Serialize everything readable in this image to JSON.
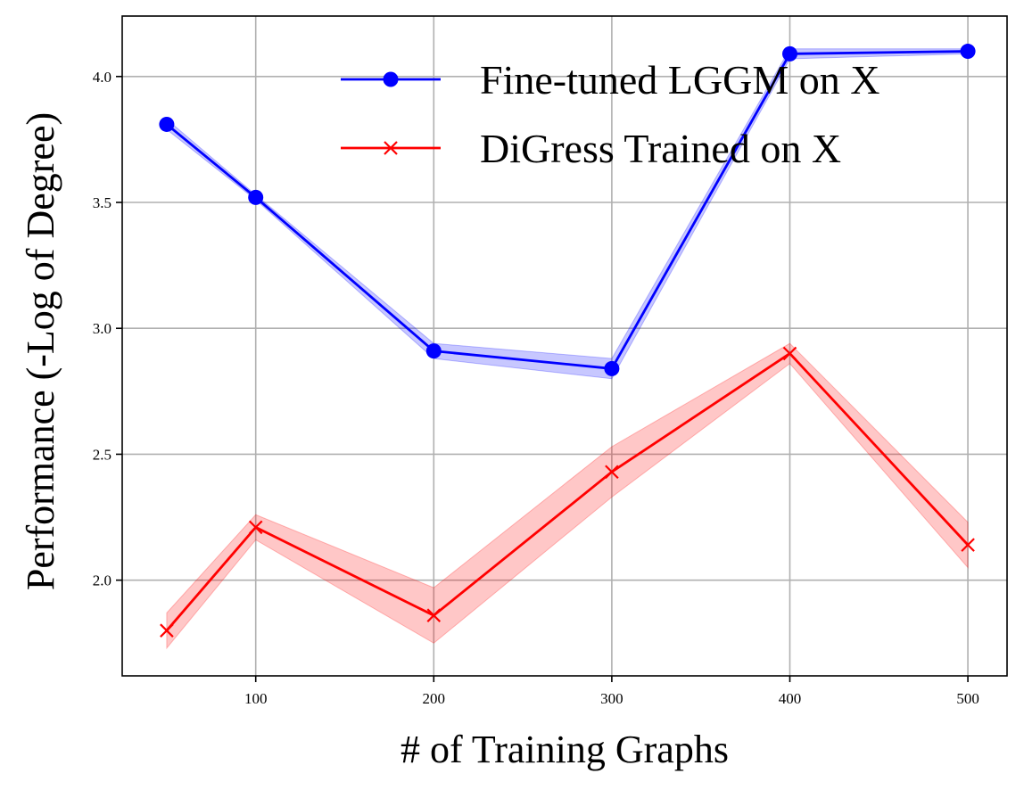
{
  "chart_data": {
    "type": "line",
    "title": "",
    "xlabel": "# of Training Graphs",
    "ylabel": "Performance (-Log of Degree)",
    "xlim": [
      25,
      522
    ],
    "ylim": [
      1.62,
      4.24
    ],
    "xticks": [
      100,
      200,
      300,
      400,
      500
    ],
    "yticks": [
      2.0,
      2.5,
      3.0,
      3.5,
      4.0
    ],
    "xtick_labels": [
      "100",
      "200",
      "300",
      "400",
      "500"
    ],
    "ytick_labels": [
      "2.0",
      "2.5",
      "3.0",
      "3.5",
      "4.0"
    ],
    "grid": true,
    "legend_position": "top-right",
    "x": [
      50,
      100,
      200,
      300,
      400,
      500
    ],
    "series": [
      {
        "name": "Fine-tuned LGGM on X",
        "color": "#0000ff",
        "marker": "circle",
        "values": [
          3.81,
          3.52,
          2.91,
          2.84,
          4.09,
          4.1
        ],
        "lower": [
          3.79,
          3.51,
          2.88,
          2.8,
          4.07,
          4.09
        ],
        "upper": [
          3.83,
          3.53,
          2.94,
          2.88,
          4.11,
          4.11
        ]
      },
      {
        "name": "DiGress Trained on X",
        "color": "#ff0000",
        "marker": "x",
        "values": [
          1.8,
          2.21,
          1.86,
          2.43,
          2.9,
          2.14
        ],
        "lower": [
          1.73,
          2.16,
          1.75,
          2.33,
          2.86,
          2.05
        ],
        "upper": [
          1.87,
          2.26,
          1.97,
          2.53,
          2.94,
          2.23
        ]
      }
    ]
  }
}
